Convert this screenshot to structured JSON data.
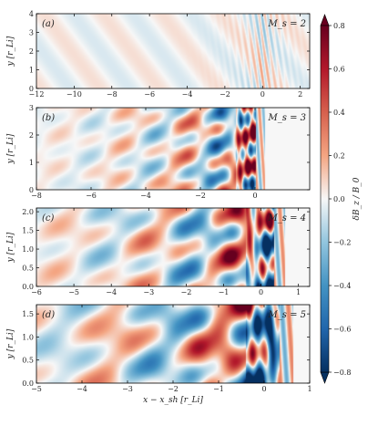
{
  "chart_data": {
    "type": "heatmap",
    "shared_xlabel": "x − x_sh [r_Li]",
    "colorbar": {
      "label": "δB_z / B_0",
      "range": [
        -0.8,
        0.8
      ],
      "ticks": [
        "0.8",
        "0.6",
        "0.4",
        "0.2",
        "0.0",
        "−0.2",
        "−0.4",
        "−0.6",
        "−0.8"
      ],
      "colors": {
        "neg": "#053061",
        "mid": "#f7f7f7",
        "pos": "#67001f"
      }
    },
    "panels": [
      {
        "tag": "(a)",
        "mach": "M_s = 2",
        "xlim": [
          -12,
          2.5
        ],
        "ylim": [
          0,
          4
        ],
        "xticks": [
          -12,
          -10,
          -8,
          -6,
          -4,
          -2,
          0,
          2
        ],
        "yticks": [
          0,
          1,
          2,
          3,
          4
        ],
        "ylabel": "y [r_Li]",
        "shock_x": 0,
        "amplitude": 0.15
      },
      {
        "tag": "(b)",
        "mach": "M_s = 3",
        "xlim": [
          -8,
          2
        ],
        "ylim": [
          0,
          3
        ],
        "xticks": [
          -8,
          -6,
          -4,
          -2,
          0
        ],
        "yticks": [
          0,
          1,
          2,
          3
        ],
        "ylabel": "y [r_Li]",
        "shock_x": 0,
        "amplitude": 0.7
      },
      {
        "tag": "(c)",
        "mach": "M_s = 4",
        "xlim": [
          -6,
          1.3
        ],
        "ylim": [
          0,
          2.1
        ],
        "xticks": [
          -6,
          -5,
          -4,
          -3,
          -2,
          -1,
          0,
          1
        ],
        "yticks": [
          0.0,
          0.5,
          1.0,
          1.5,
          2.0
        ],
        "ylabel": "y [r_Li]",
        "shock_x": 0.3,
        "amplitude": 0.8
      },
      {
        "tag": "(d)",
        "mach": "M_s = 5",
        "xlim": [
          -5,
          1
        ],
        "ylim": [
          0,
          1.7
        ],
        "xticks": [
          -5,
          -4,
          -3,
          -2,
          -1,
          0,
          1
        ],
        "yticks": [
          0.0,
          0.5,
          1.0,
          1.5
        ],
        "ylabel": "y [r_Li]",
        "shock_x": 0.3,
        "amplitude": 0.85
      }
    ]
  }
}
